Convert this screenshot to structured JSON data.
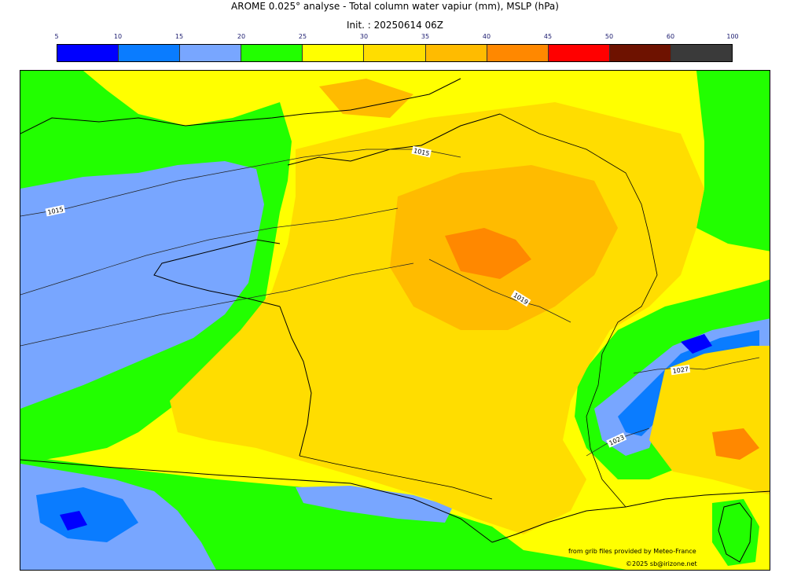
{
  "title": "AROME 0.025° analyse - Total column water vapiur (mm), MSLP (hPa)",
  "init": "Init. : 20250614 06Z",
  "colorbar": {
    "ticks": [
      "5",
      "10",
      "15",
      "20",
      "25",
      "30",
      "35",
      "40",
      "45",
      "50",
      "60",
      "100"
    ],
    "colors": [
      "#0000ff",
      "#0a7cff",
      "#78a6ff",
      "#22ff00",
      "#ffff00",
      "#ffdd00",
      "#ffbb00",
      "#ff8800",
      "#ff0000",
      "#6e1200",
      "#3a3a3a"
    ]
  },
  "isobars": [
    "1015",
    "1015",
    "1019",
    "1027",
    "1023"
  ],
  "credits": {
    "line1": "from grib files provided by Meteo-France",
    "line2": "©2025 sb@irizone.net"
  }
}
